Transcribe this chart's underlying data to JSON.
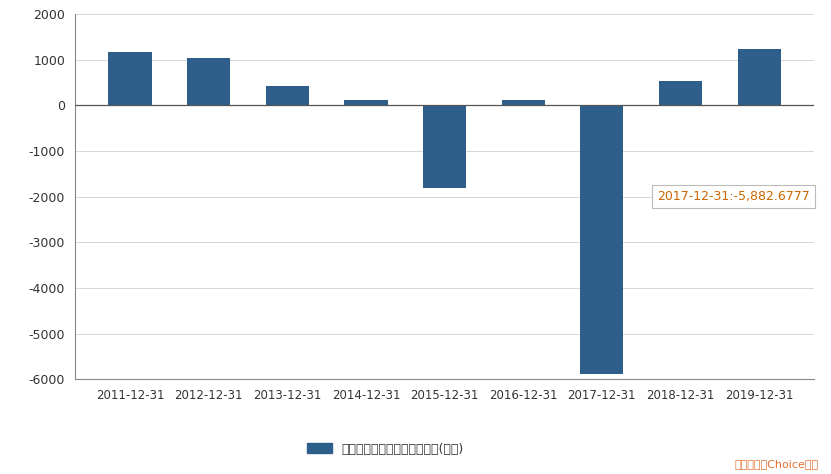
{
  "categories": [
    "2011-12-31",
    "2012-12-31",
    "2013-12-31",
    "2014-12-31",
    "2015-12-31",
    "2016-12-31",
    "2017-12-31",
    "2018-12-31",
    "2019-12-31"
  ],
  "values": [
    1168.0,
    1045.0,
    420.0,
    120.0,
    -1820.0,
    120.0,
    -5882.6777,
    530.0,
    1230.0
  ],
  "bar_color": "#2e5f8a",
  "ylim": [
    -6000,
    2000
  ],
  "yticks": [
    -6000,
    -5000,
    -4000,
    -3000,
    -2000,
    -1000,
    0,
    1000,
    2000
  ],
  "xlabel": "",
  "ylabel": "",
  "legend_label": "扣除非经常性损益后的净利润(万元)",
  "annotation_text": "2017-12-31:-5,882.6777",
  "annotation_idx": 6,
  "source_text": "数据来源：Choice数据",
  "bg_color": "#ffffff",
  "grid_color": "#d0d0d0",
  "spine_color": "#888888",
  "zero_line_color": "#555555",
  "tick_color": "#333333",
  "ann_text_color": "#cc6600",
  "source_color": "#e07030",
  "legend_text_color": "#333333"
}
